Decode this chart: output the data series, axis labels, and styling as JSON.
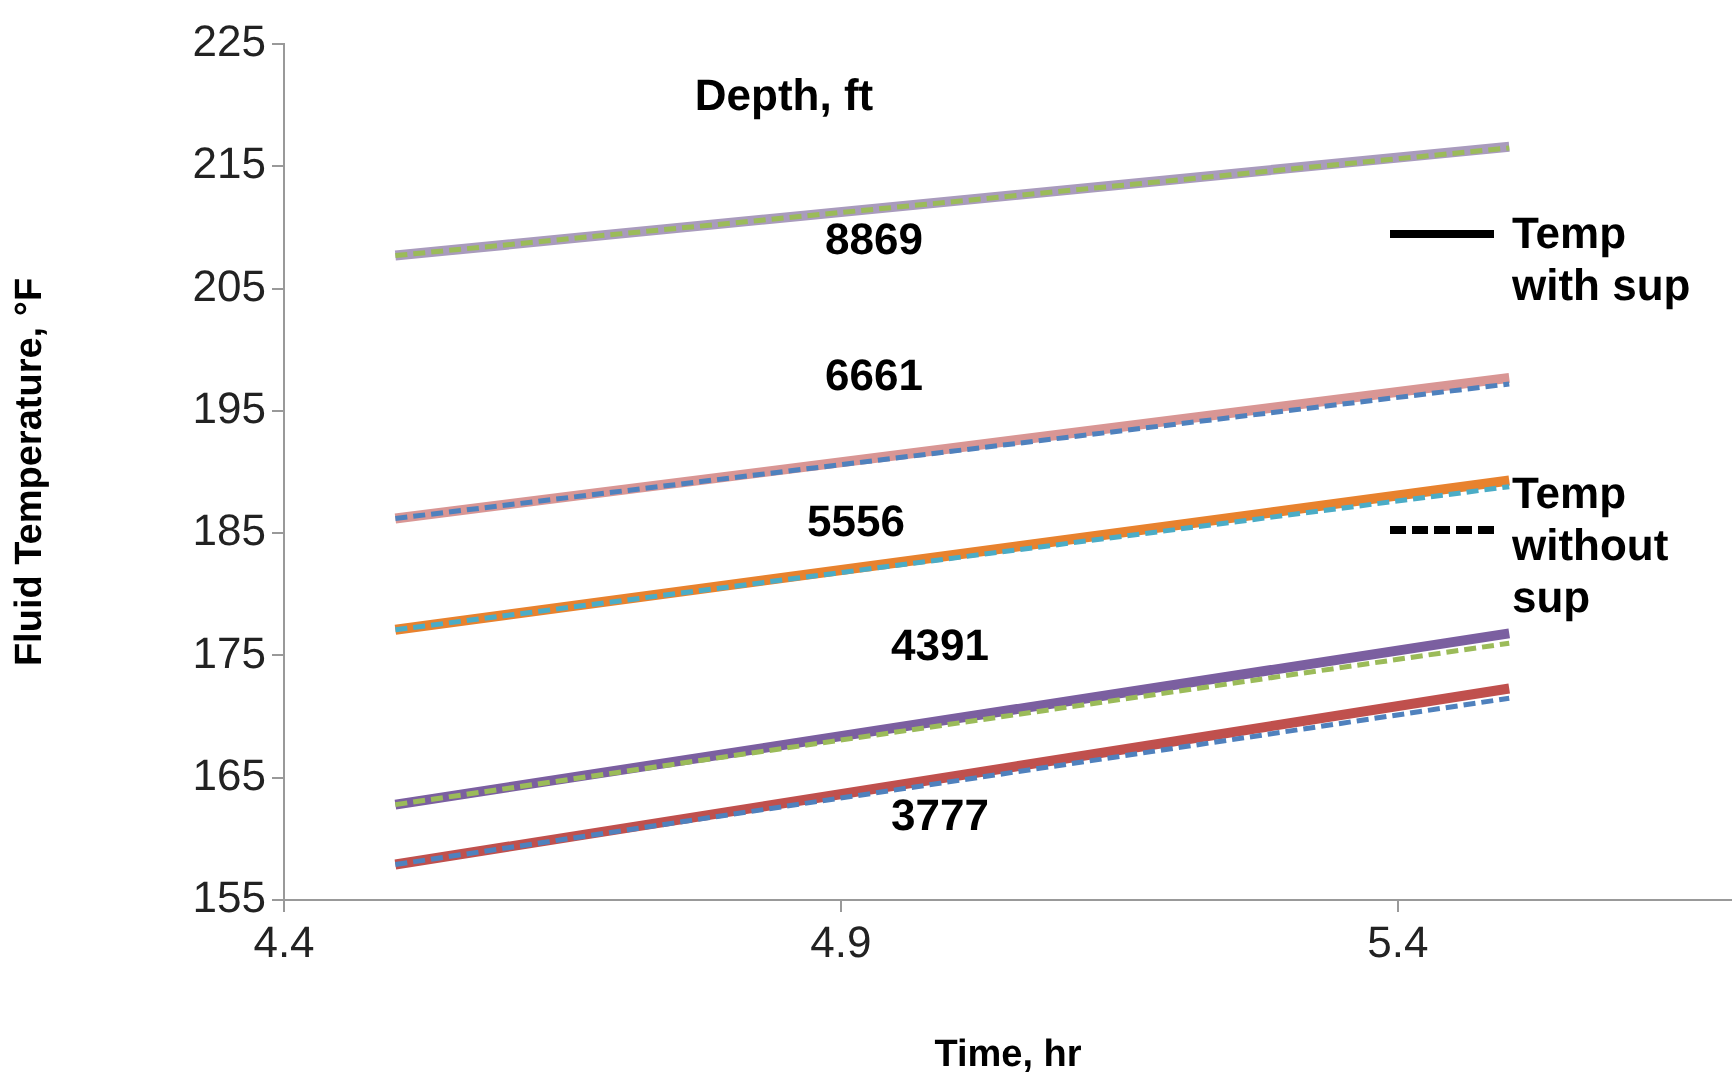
{
  "chart_data": {
    "type": "line",
    "xlabel": "Time, hr",
    "ylabel": "Fluid Temperature, °F",
    "x": [
      4.5,
      5.5
    ],
    "xlim": [
      4.4,
      5.7
    ],
    "xticks": [
      4.4,
      4.9,
      5.4
    ],
    "ylim": [
      155,
      225
    ],
    "yticks": [
      155,
      165,
      175,
      185,
      195,
      205,
      215,
      225
    ],
    "series": [
      {
        "color": "#a99bbd",
        "values": [
          207.7,
          216.6
        ],
        "line_style": "solid"
      },
      {
        "color": "#9bbb59",
        "values": [
          207.7,
          216.5
        ],
        "line_style": "dashed"
      },
      {
        "color": "#d99694",
        "values": [
          186.2,
          197.7
        ],
        "line_style": "solid"
      },
      {
        "color": "#4f81bd",
        "values": [
          186.2,
          197.2
        ],
        "line_style": "dashed"
      },
      {
        "color": "#e8822e",
        "values": [
          177.1,
          189.3
        ],
        "line_style": "solid"
      },
      {
        "color": "#4bacc6",
        "values": [
          177.1,
          188.8
        ],
        "line_style": "dashed"
      },
      {
        "color": "#7b5fa0",
        "values": [
          162.8,
          176.8
        ],
        "line_style": "solid"
      },
      {
        "color": "#9bbb59",
        "values": [
          162.8,
          176.0
        ],
        "line_style": "dashed"
      },
      {
        "color": "#c0504d",
        "values": [
          157.9,
          172.3
        ],
        "line_style": "solid"
      },
      {
        "color": "#4f81bd",
        "values": [
          157.9,
          171.5
        ],
        "line_style": "dashed"
      }
    ],
    "annotations": [
      "Depth, ft",
      "8869",
      "6661",
      "5556",
      "4391",
      "3777",
      "Temp with sup",
      "Temp without sup"
    ]
  }
}
